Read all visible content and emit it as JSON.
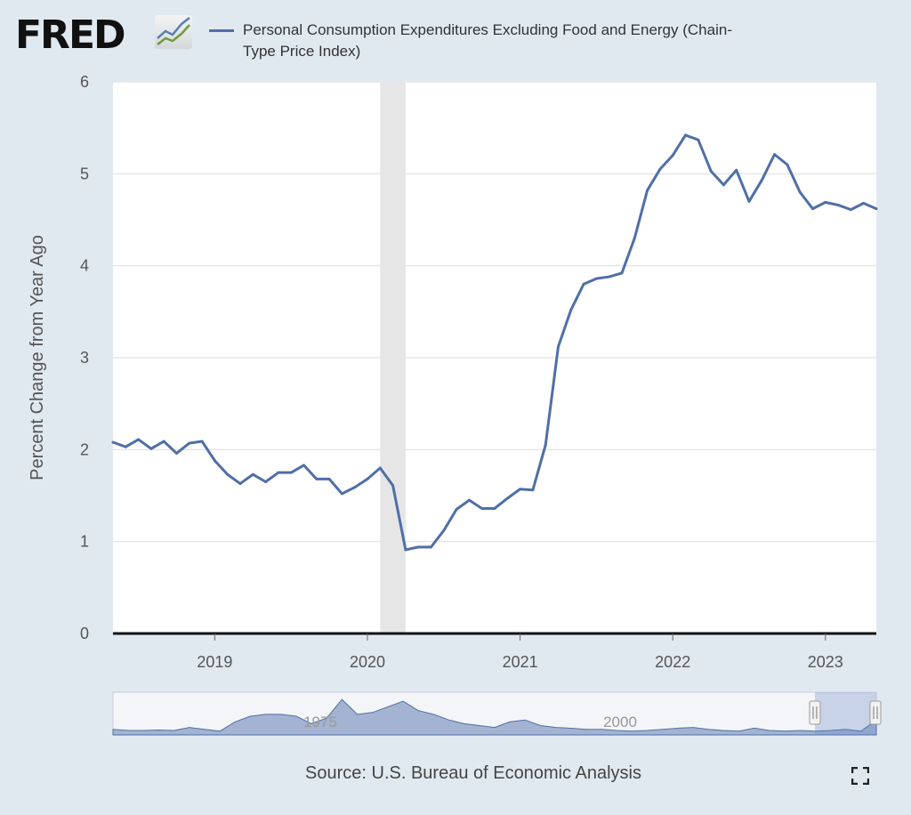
{
  "header": {
    "logo": "FRED",
    "legend": "Personal Consumption Expenditures Excluding Food and Energy (Chain-Type Price Index)"
  },
  "source": "Source: U.S. Bureau of Economic Analysis",
  "navigator": {
    "labels": [
      "1975",
      "2000"
    ]
  },
  "chart_data": {
    "type": "line",
    "title": "Personal Consumption Expenditures Excluding Food and Energy (Chain-Type Price Index)",
    "ylabel": "Percent Change from Year Ago",
    "xlabel": "",
    "ylim": [
      0,
      6
    ],
    "yticks": [
      "0",
      "1",
      "2",
      "3",
      "4",
      "5",
      "6"
    ],
    "xticks": [
      "2019",
      "2020",
      "2021",
      "2022",
      "2023"
    ],
    "start": "2018-05",
    "frequency": "monthly",
    "recession": [
      "2020-02",
      "2020-04"
    ],
    "color": "#4f6fa6",
    "series": [
      {
        "name": "PCE excl. Food and Energy",
        "values": [
          2.08,
          2.03,
          2.11,
          2.01,
          2.09,
          1.96,
          2.07,
          2.09,
          1.88,
          1.73,
          1.63,
          1.73,
          1.65,
          1.75,
          1.75,
          1.83,
          1.68,
          1.68,
          1.52,
          1.59,
          1.68,
          1.8,
          1.61,
          0.91,
          0.94,
          0.94,
          1.12,
          1.35,
          1.45,
          1.36,
          1.36,
          1.47,
          1.57,
          1.56,
          2.05,
          3.12,
          3.52,
          3.8,
          3.86,
          3.88,
          3.92,
          4.3,
          4.82,
          5.05,
          5.2,
          5.42,
          5.37,
          5.03,
          4.88,
          5.04,
          4.7,
          4.93,
          5.21,
          5.1,
          4.8,
          4.62,
          4.69,
          4.66,
          4.61,
          4.68,
          4.62
        ]
      }
    ]
  }
}
